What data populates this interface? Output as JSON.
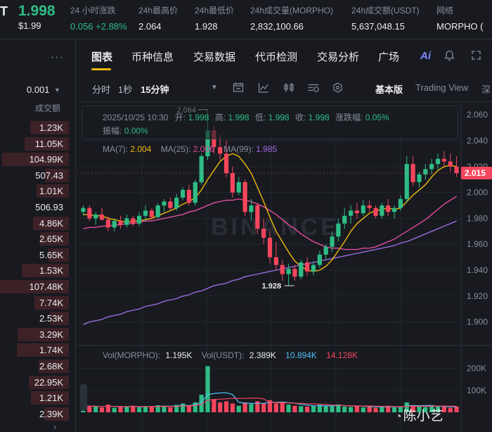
{
  "header": {
    "pair_fragment": "T",
    "last_price": "1.998",
    "usd_price": "$1.99",
    "stats": [
      {
        "label": "24 小时涨跌",
        "value": "0.056 +2.88%",
        "green": true
      },
      {
        "label": "24h最高价",
        "value": "2.064",
        "green": false
      },
      {
        "label": "24h最低价",
        "value": "1.928",
        "green": false
      },
      {
        "label": "24h成交量(MORPHO)",
        "value": "2,832,100.66",
        "green": false
      },
      {
        "label": "24h成交额(USDT)",
        "value": "5,637,048.15",
        "green": false
      },
      {
        "label": "网络",
        "value": "MORPHO (",
        "green": false
      }
    ]
  },
  "left_panel": {
    "more_icon": "more-dots-icon",
    "precision": "0.001",
    "column_header": "成交额",
    "rows": [
      {
        "value": "1.23K",
        "depth": 0.56
      },
      {
        "value": "11.05K",
        "depth": 0.64
      },
      {
        "value": "104.99K",
        "depth": 0.97
      },
      {
        "value": "507.43",
        "depth": 0.35
      },
      {
        "value": "1.01K",
        "depth": 0.47
      },
      {
        "value": "506.93",
        "depth": 0.0
      },
      {
        "value": "4.86K",
        "depth": 0.52
      },
      {
        "value": "2.65K",
        "depth": 0.42
      },
      {
        "value": "5.65K",
        "depth": 0.3
      },
      {
        "value": "1.53K",
        "depth": 0.68
      },
      {
        "value": "107.48K",
        "depth": 1.0
      },
      {
        "value": "7.74K",
        "depth": 0.5
      },
      {
        "value": "2.53K",
        "depth": 0.28
      },
      {
        "value": "3.29K",
        "depth": 0.75
      },
      {
        "value": "1.74K",
        "depth": 0.76
      },
      {
        "value": "2.68K",
        "depth": 0.44
      },
      {
        "value": "22.95K",
        "depth": 0.58
      },
      {
        "value": "1.21K",
        "depth": 0.55
      },
      {
        "value": "2.39K",
        "depth": 0.36
      }
    ],
    "bottom_chevron": "›"
  },
  "tabs": {
    "items": [
      "图表",
      "币种信息",
      "交易数据",
      "代币检测",
      "交易分析",
      "广场"
    ],
    "active": "图表",
    "ai_label": "Ai",
    "icons": [
      "ai-icon",
      "bell-icon",
      "expand-icon"
    ]
  },
  "toolbar": {
    "time_label": "分时",
    "one_sec": "1秒",
    "interval": "15分钟",
    "view_basic": "基本版",
    "view_tv": "Trading View",
    "view_depth": "深",
    "icons": [
      "chevron-down-icon",
      "candle-settings-icon",
      "indicator-icon",
      "bar-type-icon",
      "draw-tool-icon",
      "settings-icon"
    ]
  },
  "ohlc": {
    "datetime": "2025/10/25 10:30",
    "open_label": "开:",
    "open": "1.998",
    "high_label": "高:",
    "high": "1.998",
    "low_label": "低:",
    "low": "1.998",
    "close_label": "收:",
    "close": "1.998",
    "change_label": "涨跌幅:",
    "change": "0.05%",
    "amp_label": "振幅:",
    "amp": "0.00%"
  },
  "ma": {
    "ma7_label": "MA(7):",
    "ma7": "2.004",
    "ma7_color": "#f0b90b",
    "ma25_label": "MA(25):",
    "ma25": "2.006",
    "ma25_color": "#e24da0",
    "ma99_label": "MA(99):",
    "ma99": "1.985",
    "ma99_color": "#9c6ade"
  },
  "volume": {
    "morpho_label": "Vol(MORPHO):",
    "morpho": "1.195K",
    "usdt_label": "Vol(USDT):",
    "usdt": "2.389K",
    "ma_a": "10.894K",
    "ma_a_color": "#4fc3f7",
    "ma_b": "14.128K",
    "ma_b_color": "#f6465d"
  },
  "chart_data": {
    "type": "candlestick",
    "y_ticks": [
      "2.060",
      "2.040",
      "2.020",
      "2.000",
      "1.980",
      "1.960",
      "1.940",
      "1.920",
      "1.900"
    ],
    "ylim": [
      1.89,
      2.065
    ],
    "current_price_label": "2.015",
    "high_marker": "2.064",
    "low_marker": "1.928",
    "vol_ticks": [
      "200K",
      "100K"
    ],
    "vol_ylim": [
      0,
      240
    ],
    "up_color": "#2ebd85",
    "down_color": "#f6465d",
    "candles": [
      [
        1.985,
        1.99,
        1.982,
        1.988
      ],
      [
        1.988,
        1.99,
        1.978,
        1.98
      ],
      [
        1.98,
        1.985,
        1.975,
        1.983
      ],
      [
        1.983,
        1.988,
        1.978,
        1.979
      ],
      [
        1.979,
        1.982,
        1.97,
        1.973
      ],
      [
        1.973,
        1.98,
        1.97,
        1.978
      ],
      [
        1.978,
        1.982,
        1.972,
        1.975
      ],
      [
        1.975,
        1.983,
        1.973,
        1.98
      ],
      [
        1.98,
        1.982,
        1.974,
        1.976
      ],
      [
        1.976,
        1.985,
        1.974,
        1.982
      ],
      [
        1.982,
        1.99,
        1.978,
        1.986
      ],
      [
        1.986,
        1.988,
        1.979,
        1.981
      ],
      [
        1.981,
        1.992,
        1.98,
        1.99
      ],
      [
        1.99,
        1.995,
        1.985,
        1.993
      ],
      [
        1.993,
        1.996,
        1.986,
        1.988
      ],
      [
        1.988,
        1.999,
        1.986,
        1.996
      ],
      [
        1.996,
        2.004,
        1.994,
        2.002
      ],
      [
        2.002,
        2.006,
        1.99,
        1.992
      ],
      [
        1.992,
        2.01,
        1.99,
        2.008
      ],
      [
        2.008,
        2.03,
        2.006,
        2.028
      ],
      [
        2.028,
        2.064,
        2.025,
        2.048
      ],
      [
        2.048,
        2.052,
        2.03,
        2.035
      ],
      [
        2.035,
        2.045,
        2.025,
        2.03
      ],
      [
        2.03,
        2.04,
        2.012,
        2.015
      ],
      [
        2.015,
        2.02,
        1.996,
        2.0
      ],
      [
        2.0,
        2.012,
        1.998,
        2.008
      ],
      [
        2.008,
        2.01,
        1.982,
        1.985
      ],
      [
        1.985,
        1.995,
        1.978,
        1.99
      ],
      [
        1.99,
        1.992,
        1.968,
        1.972
      ],
      [
        1.972,
        1.98,
        1.96,
        1.965
      ],
      [
        1.965,
        1.97,
        1.945,
        1.95
      ],
      [
        1.95,
        1.962,
        1.94,
        1.944
      ],
      [
        1.944,
        1.948,
        1.932,
        1.937
      ],
      [
        1.937,
        1.945,
        1.928,
        1.941
      ],
      [
        1.941,
        1.944,
        1.932,
        1.935
      ],
      [
        1.935,
        1.948,
        1.933,
        1.946
      ],
      [
        1.946,
        1.95,
        1.936,
        1.939
      ],
      [
        1.939,
        1.947,
        1.936,
        1.944
      ],
      [
        1.944,
        1.955,
        1.942,
        1.952
      ],
      [
        1.952,
        1.96,
        1.948,
        1.958
      ],
      [
        1.958,
        1.97,
        1.954,
        1.966
      ],
      [
        1.966,
        1.98,
        1.962,
        1.976
      ],
      [
        1.976,
        1.988,
        1.972,
        1.982
      ],
      [
        1.982,
        1.99,
        1.976,
        1.986
      ],
      [
        1.986,
        1.992,
        1.98,
        1.984
      ],
      [
        1.984,
        1.994,
        1.982,
        1.99
      ],
      [
        1.99,
        1.994,
        1.985,
        1.988
      ],
      [
        1.988,
        1.99,
        1.98,
        1.982
      ],
      [
        1.982,
        1.992,
        1.98,
        1.99
      ],
      [
        1.99,
        1.995,
        1.982,
        1.985
      ],
      [
        1.985,
        1.99,
        1.98,
        1.988
      ],
      [
        1.988,
        1.998,
        1.986,
        1.995
      ],
      [
        1.995,
        2.028,
        1.992,
        2.022
      ],
      [
        2.022,
        2.028,
        2.005,
        2.008
      ],
      [
        2.008,
        2.016,
        2.004,
        2.014
      ],
      [
        2.014,
        2.022,
        2.01,
        2.018
      ],
      [
        2.018,
        2.026,
        2.014,
        2.022
      ],
      [
        2.022,
        2.03,
        2.018,
        2.026
      ],
      [
        2.026,
        2.032,
        2.02,
        2.024
      ],
      [
        2.024,
        2.03,
        2.016,
        2.02
      ],
      [
        2.02,
        2.028,
        2.012,
        2.015
      ]
    ],
    "volumes": [
      30,
      25,
      28,
      22,
      35,
      20,
      26,
      24,
      30,
      22,
      28,
      25,
      32,
      30,
      22,
      34,
      40,
      30,
      45,
      80,
      210,
      60,
      45,
      50,
      40,
      30,
      45,
      38,
      50,
      42,
      55,
      40,
      48,
      35,
      30,
      28,
      26,
      30,
      34,
      28,
      30,
      36,
      26,
      24,
      30,
      22,
      28,
      20,
      24,
      30,
      22,
      26,
      45,
      30,
      28,
      24,
      26,
      30,
      24,
      20,
      26
    ],
    "ma7": [
      1.983,
      1.983,
      1.982,
      1.982,
      1.98,
      1.979,
      1.978,
      1.977,
      1.978,
      1.978,
      1.979,
      1.98,
      1.982,
      1.984,
      1.986,
      1.988,
      1.991,
      1.993,
      1.996,
      2.002,
      2.01,
      2.017,
      2.024,
      2.028,
      2.03,
      2.028,
      2.022,
      2.015,
      2.004,
      1.993,
      1.981,
      1.97,
      1.962,
      1.954,
      1.947,
      1.943,
      1.94,
      1.939,
      1.94,
      1.943,
      1.948,
      1.955,
      1.962,
      1.97,
      1.976,
      1.98,
      1.984,
      1.986,
      1.987,
      1.988,
      1.987,
      1.988,
      1.993,
      1.998,
      2.002,
      2.006,
      2.012,
      2.017,
      2.02,
      2.021,
      2.02
    ],
    "ma25": [
      1.972,
      1.973,
      1.973,
      1.974,
      1.974,
      1.975,
      1.975,
      1.976,
      1.976,
      1.977,
      1.978,
      1.978,
      1.979,
      1.98,
      1.981,
      1.982,
      1.983,
      1.985,
      1.986,
      1.988,
      1.99,
      1.992,
      1.993,
      1.994,
      1.994,
      1.995,
      1.994,
      1.993,
      1.991,
      1.989,
      1.986,
      1.983,
      1.979,
      1.975,
      1.972,
      1.968,
      1.965,
      1.962,
      1.96,
      1.958,
      1.957,
      1.957,
      1.956,
      1.956,
      1.956,
      1.957,
      1.957,
      1.958,
      1.96,
      1.962,
      1.964,
      1.967,
      1.97,
      1.973,
      1.976,
      1.979,
      1.983,
      1.987,
      1.991,
      1.994,
      1.997
    ],
    "ma99": [
      1.898,
      1.9,
      1.901,
      1.902,
      1.904,
      1.905,
      1.906,
      1.908,
      1.909,
      1.91,
      1.912,
      1.913,
      1.914,
      1.916,
      1.917,
      1.918,
      1.92,
      1.921,
      1.923,
      1.924,
      1.926,
      1.928,
      1.929,
      1.93,
      1.932,
      1.933,
      1.935,
      1.936,
      1.937,
      1.938,
      1.939,
      1.94,
      1.941,
      1.942,
      1.943,
      1.944,
      1.945,
      1.946,
      1.947,
      1.948,
      1.949,
      1.95,
      1.951,
      1.952,
      1.953,
      1.954,
      1.955,
      1.956,
      1.957,
      1.958,
      1.959,
      1.961,
      1.962,
      1.964,
      1.966,
      1.968,
      1.97,
      1.972,
      1.974,
      1.976,
      1.978
    ]
  },
  "watermark": {
    "exchange": "BINANCE",
    "author": "陈小艺",
    "author_icon": "chat-bubble-icon"
  }
}
